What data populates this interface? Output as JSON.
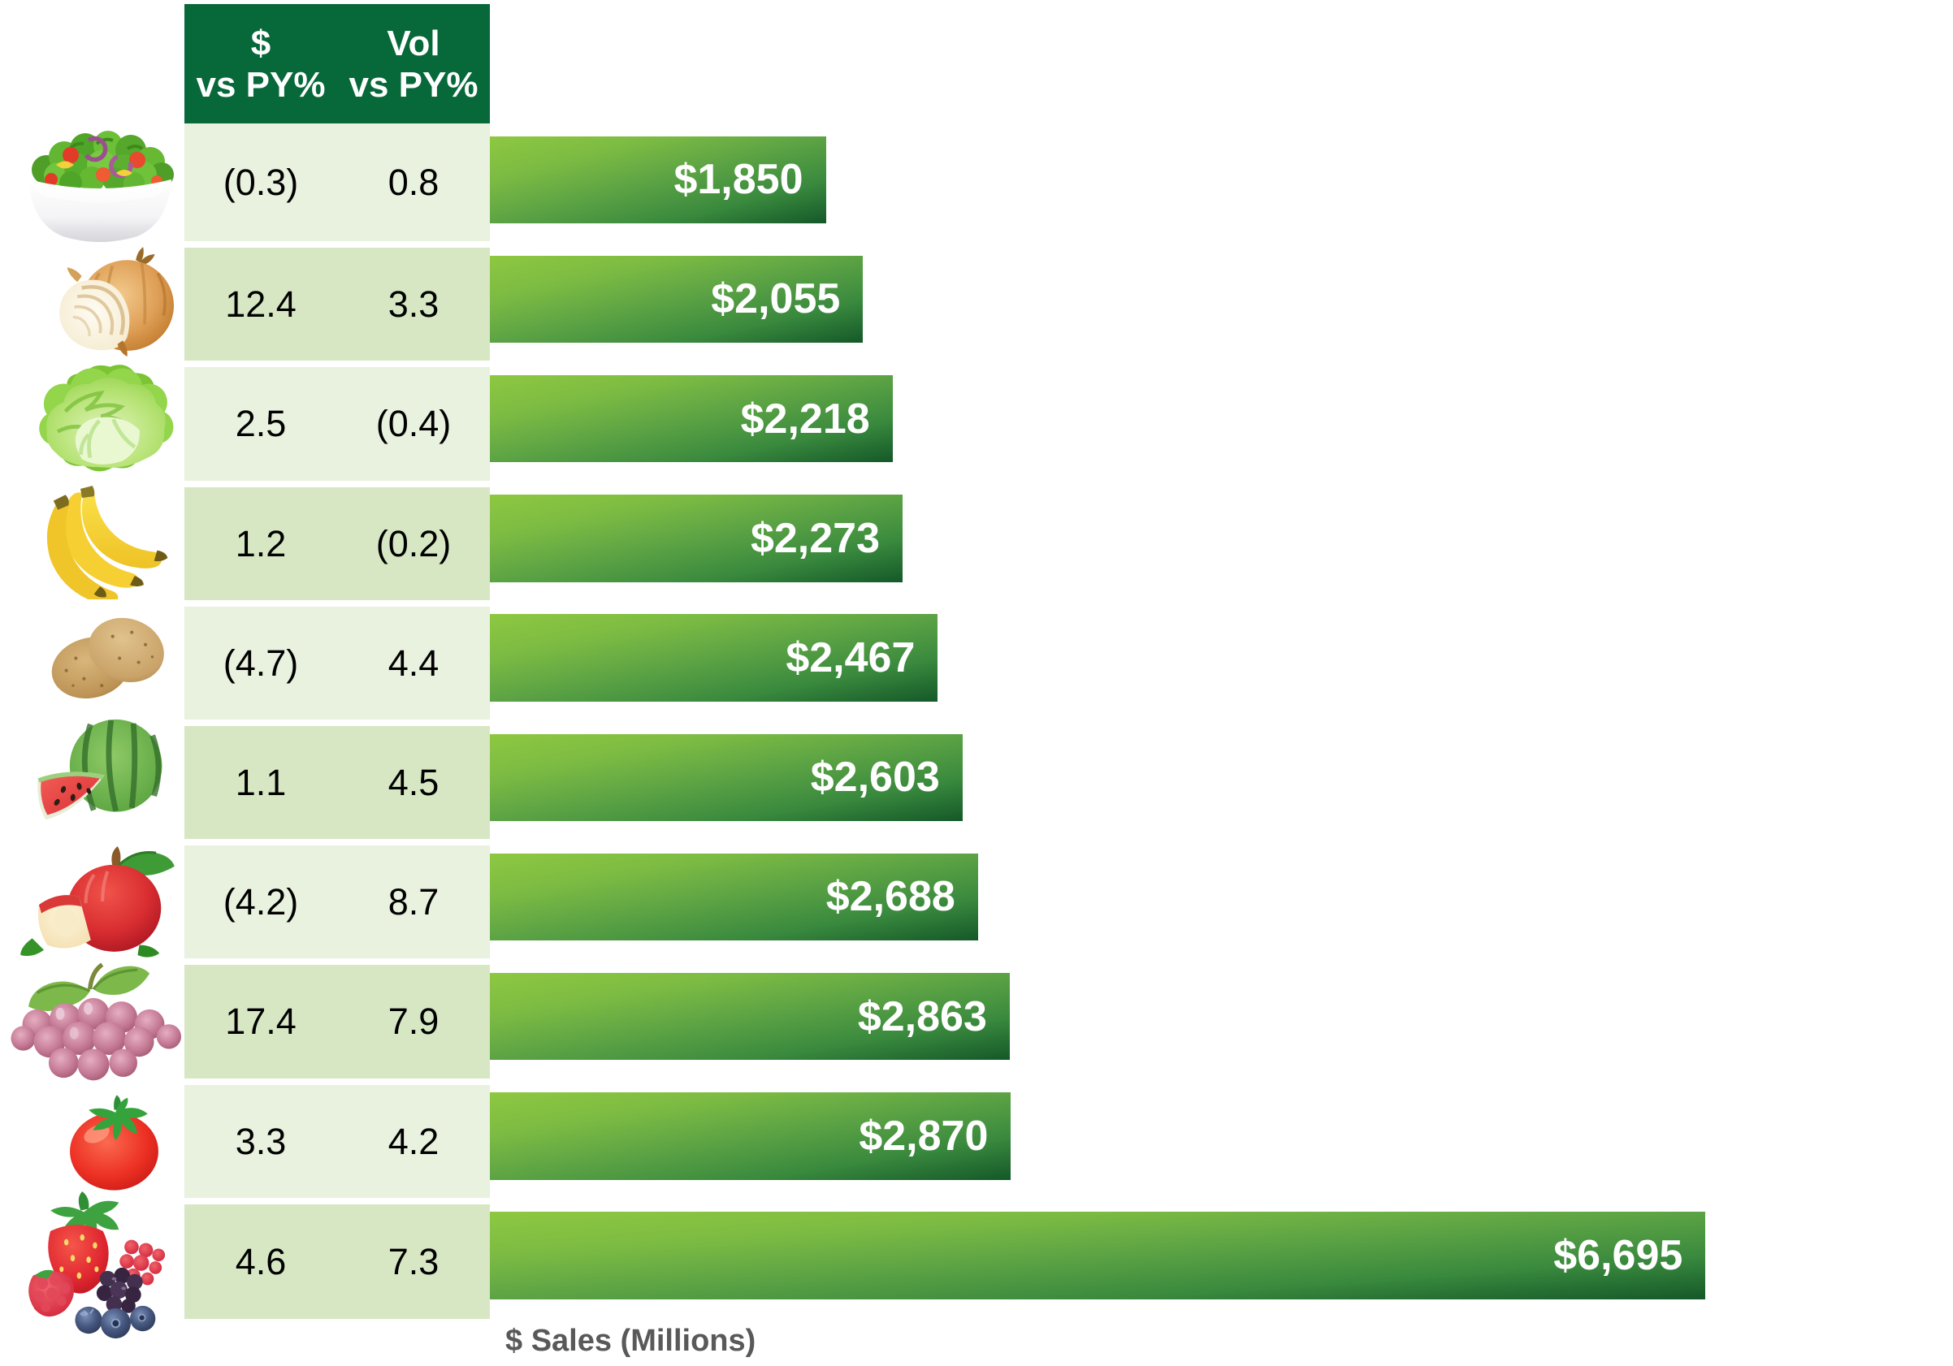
{
  "table": {
    "header": [
      {
        "line1": "$",
        "line2": "vs PY%"
      },
      {
        "line1": "Vol",
        "line2": "vs PY%"
      }
    ]
  },
  "axis": {
    "label": "$ Sales (Millions)"
  },
  "rows": [
    {
      "category": "salad",
      "icon": "salad-bowl-icon",
      "dollar_vs_py": "(0.3)",
      "vol_vs_py": "0.8",
      "sales_value": 1850,
      "sales_label": "$1,850"
    },
    {
      "category": "onions",
      "icon": "onion-icon",
      "dollar_vs_py": "12.4",
      "vol_vs_py": "3.3",
      "sales_value": 2055,
      "sales_label": "$2,055"
    },
    {
      "category": "lettuce",
      "icon": "lettuce-icon",
      "dollar_vs_py": "2.5",
      "vol_vs_py": "(0.4)",
      "sales_value": 2218,
      "sales_label": "$2,218"
    },
    {
      "category": "bananas",
      "icon": "banana-icon",
      "dollar_vs_py": "1.2",
      "vol_vs_py": "(0.2)",
      "sales_value": 2273,
      "sales_label": "$2,273"
    },
    {
      "category": "potatoes",
      "icon": "potato-icon",
      "dollar_vs_py": "(4.7)",
      "vol_vs_py": "4.4",
      "sales_value": 2467,
      "sales_label": "$2,467"
    },
    {
      "category": "watermelon",
      "icon": "watermelon-icon",
      "dollar_vs_py": "1.1",
      "vol_vs_py": "4.5",
      "sales_value": 2603,
      "sales_label": "$2,603"
    },
    {
      "category": "apples",
      "icon": "apple-icon",
      "dollar_vs_py": "(4.2)",
      "vol_vs_py": "8.7",
      "sales_value": 2688,
      "sales_label": "$2,688"
    },
    {
      "category": "grapes",
      "icon": "grapes-icon",
      "dollar_vs_py": "17.4",
      "vol_vs_py": "7.9",
      "sales_value": 2863,
      "sales_label": "$2,863"
    },
    {
      "category": "tomatoes",
      "icon": "tomato-icon",
      "dollar_vs_py": "3.3",
      "vol_vs_py": "4.2",
      "sales_value": 2870,
      "sales_label": "$2,870"
    },
    {
      "category": "berries",
      "icon": "berries-icon",
      "dollar_vs_py": "4.6",
      "vol_vs_py": "7.3",
      "sales_value": 6695,
      "sales_label": "$6,695"
    }
  ],
  "colors": {
    "header_bg": "#07683a",
    "header_text": "#ffffff",
    "row_light": "#e9f1df",
    "row_dark": "#d7e7c3",
    "table_text": "#000000",
    "bar_gradient_start": "#8ec841",
    "bar_gradient_q1": "#7cbb43",
    "bar_gradient_mid": "#5ca344",
    "bar_gradient_q3": "#3a8a3e",
    "bar_gradient_end": "#145829",
    "bar_label_text": "#ffffff",
    "axis_label_text": "#595959",
    "background": "#ffffff"
  },
  "chart_data": {
    "type": "bar",
    "orientation": "horizontal",
    "title": "",
    "xlabel": "$ Sales (Millions)",
    "ylabel": "",
    "xlim": [
      0,
      8000
    ],
    "grid": false,
    "legend": false,
    "categories": [
      "salad",
      "onions",
      "lettuce",
      "bananas",
      "potatoes",
      "watermelon",
      "apples",
      "grapes",
      "tomatoes",
      "berries"
    ],
    "series": [
      {
        "name": "$ vs PY%",
        "values": [
          "(0.3)",
          "12.4",
          "2.5",
          "1.2",
          "(4.7)",
          "1.1",
          "(4.2)",
          "17.4",
          "3.3",
          "4.6"
        ]
      },
      {
        "name": "Vol vs PY%",
        "values": [
          "0.8",
          "3.3",
          "(0.4)",
          "(0.2)",
          "4.4",
          "4.5",
          "8.7",
          "7.9",
          "4.2",
          "7.3"
        ]
      },
      {
        "name": "$ Sales (Millions)",
        "values": [
          1850,
          2055,
          2218,
          2273,
          2467,
          2603,
          2688,
          2863,
          2870,
          6695
        ]
      }
    ],
    "bar_labels": [
      "$1,850",
      "$2,055",
      "$2,218",
      "$2,273",
      "$2,467",
      "$2,603",
      "$2,688",
      "$2,863",
      "$2,870",
      "$6,695"
    ]
  }
}
